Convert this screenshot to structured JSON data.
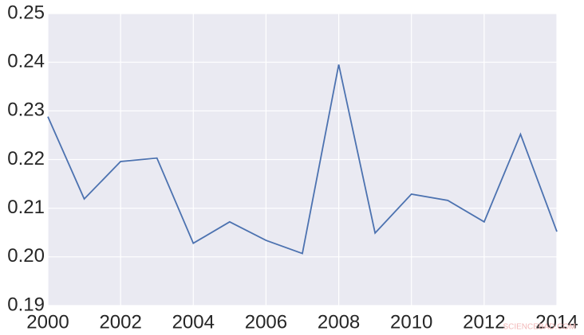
{
  "chart_data": {
    "type": "line",
    "x": [
      2000,
      2001,
      2002,
      2003,
      2004,
      2005,
      2006,
      2007,
      2008,
      2009,
      2010,
      2011,
      2012,
      2013,
      2014
    ],
    "series": [
      {
        "color": "#4c72b0",
        "values": [
          0.2288,
          0.2119,
          0.2196,
          0.2203,
          0.2028,
          0.2072,
          0.2034,
          0.2007,
          0.2395,
          0.2049,
          0.2129,
          0.2116,
          0.2072,
          0.2252,
          0.2052
        ]
      }
    ],
    "xlim": [
      2000,
      2014
    ],
    "xticks": [
      2000,
      2002,
      2004,
      2006,
      2008,
      2010,
      2012,
      2014
    ],
    "ylim": [
      0.19,
      0.25
    ],
    "yticks": [
      {
        "value": 0.19,
        "label": "0.19"
      },
      {
        "value": 0.2,
        "label": "0.20"
      },
      {
        "value": 0.21,
        "label": "0.21"
      },
      {
        "value": 0.22,
        "label": "0.22"
      },
      {
        "value": 0.23,
        "label": "0.23"
      },
      {
        "value": 0.24,
        "label": "0.24"
      },
      {
        "value": 0.25,
        "label": "0.25"
      }
    ],
    "grid": true,
    "background": "#eaeaf2",
    "watermark": "SCIENCEBAD.COM"
  }
}
